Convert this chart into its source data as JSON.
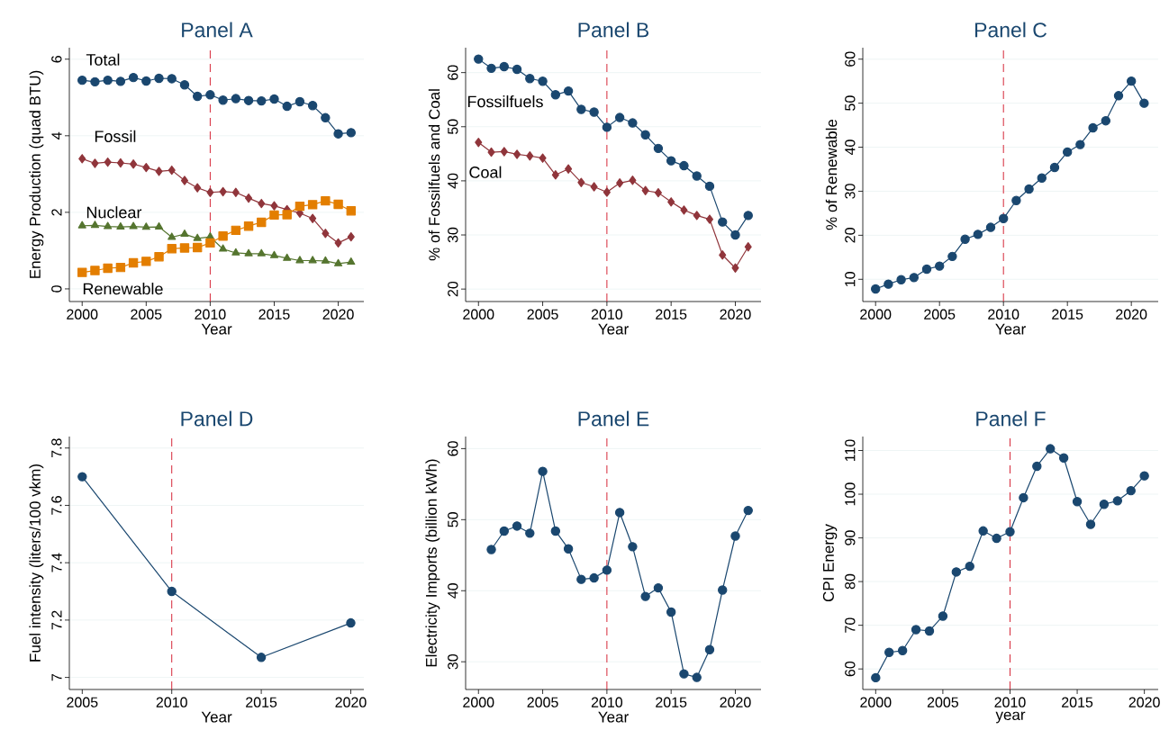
{
  "chart_data": [
    {
      "type": "line",
      "title": "Panel A",
      "xlabel": "Year",
      "ylabel": "Energy Production (quad BTU)",
      "xlim": [
        1999,
        2022
      ],
      "ylim": [
        -0.33,
        6.3
      ],
      "xticks": [
        2000,
        2005,
        2010,
        2015,
        2020
      ],
      "yticks": [
        0,
        2,
        4,
        6
      ],
      "grid": "y",
      "line_style": "solid",
      "x": [
        2000,
        2001,
        2002,
        2003,
        2004,
        2005,
        2006,
        2007,
        2008,
        2009,
        2010,
        2011,
        2012,
        2013,
        2014,
        2015,
        2016,
        2017,
        2018,
        2019,
        2020,
        2021
      ],
      "series": [
        {
          "name": "Total",
          "color": "#1a476f",
          "marker": "circle",
          "values": [
            5.45,
            5.41,
            5.45,
            5.42,
            5.52,
            5.43,
            5.5,
            5.49,
            5.33,
            5.03,
            5.07,
            4.93,
            4.97,
            4.92,
            4.91,
            4.96,
            4.77,
            4.89,
            4.79,
            4.47,
            4.05,
            4.08
          ]
        },
        {
          "name": "Fossil",
          "color": "#90353b",
          "marker": "diamond",
          "values": [
            3.4,
            3.28,
            3.31,
            3.29,
            3.26,
            3.17,
            3.07,
            3.1,
            2.83,
            2.64,
            2.52,
            2.54,
            2.52,
            2.37,
            2.23,
            2.17,
            2.07,
            1.98,
            1.84,
            1.45,
            1.2,
            1.36
          ]
        },
        {
          "name": "Nuclear",
          "color": "#55752f",
          "marker": "triangle",
          "values": [
            1.65,
            1.66,
            1.63,
            1.62,
            1.63,
            1.61,
            1.62,
            1.35,
            1.43,
            1.32,
            1.36,
            1.04,
            0.94,
            0.92,
            0.92,
            0.87,
            0.8,
            0.74,
            0.74,
            0.73,
            0.66,
            0.7
          ]
        },
        {
          "name": "Renewable",
          "color": "#e37e00",
          "marker": "square",
          "values": [
            0.43,
            0.48,
            0.54,
            0.56,
            0.68,
            0.72,
            0.84,
            1.05,
            1.07,
            1.08,
            1.2,
            1.38,
            1.53,
            1.64,
            1.74,
            1.93,
            1.94,
            2.16,
            2.2,
            2.3,
            2.21,
            2.04
          ]
        }
      ],
      "ref_lines": [
        {
          "axis": "x",
          "value": 2010,
          "color": "#d62839",
          "line_style": "dashed"
        }
      ]
    },
    {
      "type": "line",
      "title": "Panel B",
      "xlabel": "Year",
      "ylabel": "% of Fossilfuels and Coal",
      "xlim": [
        1999,
        2022
      ],
      "ylim": [
        17.7,
        64.6
      ],
      "xticks": [
        2000,
        2005,
        2010,
        2015,
        2020
      ],
      "yticks": [
        20,
        30,
        40,
        50,
        60
      ],
      "grid": "y",
      "line_style": "solid",
      "x": [
        2000,
        2001,
        2002,
        2003,
        2004,
        2005,
        2006,
        2007,
        2008,
        2009,
        2010,
        2011,
        2012,
        2013,
        2014,
        2015,
        2016,
        2017,
        2018,
        2019,
        2020,
        2021
      ],
      "series": [
        {
          "name": "Fossilfuels",
          "color": "#1a476f",
          "marker": "circle",
          "values": [
            62.5,
            60.8,
            61.1,
            60.6,
            58.9,
            58.4,
            55.9,
            56.6,
            53.2,
            52.7,
            49.9,
            51.7,
            50.7,
            48.5,
            46.0,
            43.7,
            42.8,
            40.9,
            39.0,
            32.4,
            30.0,
            33.6
          ]
        },
        {
          "name": "Coal",
          "color": "#90353b",
          "marker": "diamond",
          "values": [
            47.1,
            45.3,
            45.4,
            44.9,
            44.6,
            44.2,
            41.1,
            42.2,
            39.7,
            38.9,
            37.9,
            39.6,
            40.1,
            38.2,
            37.8,
            36.1,
            34.6,
            33.6,
            32.9,
            26.3,
            23.9,
            27.8
          ]
        }
      ],
      "ref_lines": [
        {
          "axis": "x",
          "value": 2010,
          "color": "#d62839",
          "line_style": "dashed"
        }
      ]
    },
    {
      "type": "line",
      "title": "Panel C",
      "xlabel": "Year",
      "ylabel": "% of Renewable",
      "xlim": [
        1999,
        2022.1
      ],
      "ylim": [
        4.95,
        62.6
      ],
      "xticks": [
        2000,
        2005,
        2010,
        2015,
        2020
      ],
      "yticks": [
        10,
        20,
        30,
        40,
        50,
        60
      ],
      "grid": "y",
      "line_style": "solid",
      "marker": "circle",
      "x": [
        2000,
        2001,
        2002,
        2003,
        2004,
        2005,
        2006,
        2007,
        2008,
        2009,
        2010,
        2011,
        2012,
        2013,
        2014,
        2015,
        2016,
        2017,
        2018,
        2019,
        2020,
        2021
      ],
      "series": [
        {
          "color": "#1a476f",
          "values": [
            7.8,
            8.9,
            9.9,
            10.4,
            12.3,
            13.0,
            15.2,
            19.1,
            20.2,
            21.8,
            23.8,
            27.9,
            30.5,
            33.0,
            35.4,
            38.9,
            40.6,
            44.4,
            46.0,
            51.7,
            55.0,
            50.0
          ]
        }
      ],
      "ref_lines": [
        {
          "axis": "x",
          "value": 2010,
          "color": "#d62839",
          "line_style": "dashed"
        }
      ]
    },
    {
      "type": "line",
      "title": "Panel D",
      "xlabel": "Year",
      "ylabel": "Fuel intensity (liters/100 vkm)",
      "xlim": [
        2004.28,
        2020.73
      ],
      "ylim": [
        6.958,
        7.84
      ],
      "xticks": [
        2005,
        2010,
        2015,
        2020
      ],
      "yticks": [
        7,
        7.2,
        7.4,
        7.6,
        7.8
      ],
      "grid": "y",
      "line_style": "solid",
      "marker": "circle",
      "x": [
        2005,
        2010,
        2015,
        2020
      ],
      "series": [
        {
          "color": "#1a476f",
          "values": [
            7.7,
            7.3,
            7.07,
            7.19
          ]
        }
      ],
      "ref_lines": [
        {
          "axis": "x",
          "value": 2010,
          "color": "#d62839",
          "line_style": "dashed"
        }
      ]
    },
    {
      "type": "line",
      "title": "Panel E",
      "xlabel": "Year",
      "ylabel": "Electricity Imports (billion kWh)",
      "xlim": [
        1999,
        2022
      ],
      "ylim": [
        26.1,
        61.7
      ],
      "xticks": [
        2000,
        2005,
        2010,
        2015,
        2020
      ],
      "yticks": [
        30,
        40,
        50,
        60
      ],
      "grid": "y",
      "line_style": "solid",
      "marker": "circle",
      "x": [
        2001,
        2002,
        2003,
        2004,
        2005,
        2006,
        2007,
        2008,
        2009,
        2010,
        2011,
        2012,
        2013,
        2014,
        2015,
        2016,
        2017,
        2018,
        2019,
        2020,
        2021
      ],
      "series": [
        {
          "color": "#1a476f",
          "values": [
            45.8,
            48.4,
            49.1,
            48.1,
            56.8,
            48.4,
            45.9,
            41.6,
            41.8,
            42.9,
            51.0,
            46.2,
            39.2,
            40.4,
            37.0,
            28.3,
            27.8,
            31.7,
            40.1,
            47.7,
            51.3
          ]
        }
      ],
      "ref_lines": [
        {
          "axis": "x",
          "value": 2010,
          "color": "#d62839",
          "line_style": "dashed"
        }
      ]
    },
    {
      "type": "line",
      "title": "Panel F",
      "xlabel": "year",
      "ylabel": "CPI Energy",
      "xlim": [
        1999.04,
        2021.03
      ],
      "ylim": [
        55.3,
        113.2
      ],
      "xticks": [
        2000,
        2005,
        2010,
        2015,
        2020
      ],
      "yticks": [
        60,
        70,
        80,
        90,
        100,
        110
      ],
      "grid": "y",
      "line_style": "solid",
      "marker": "circle",
      "x": [
        2000,
        2001,
        2002,
        2003,
        2004,
        2005,
        2006,
        2007,
        2008,
        2009,
        2010,
        2011,
        2012,
        2013,
        2014,
        2015,
        2016,
        2017,
        2018,
        2019,
        2020
      ],
      "series": [
        {
          "color": "#1a476f",
          "values": [
            58.0,
            63.8,
            64.2,
            69.0,
            68.7,
            72.1,
            82.2,
            83.5,
            91.6,
            89.9,
            91.4,
            99.2,
            106.4,
            110.4,
            108.3,
            98.3,
            93.1,
            97.7,
            98.5,
            100.8,
            104.2
          ]
        }
      ],
      "ref_lines": [
        {
          "axis": "x",
          "value": 2010,
          "color": "#d62839",
          "line_style": "dashed"
        }
      ]
    }
  ]
}
